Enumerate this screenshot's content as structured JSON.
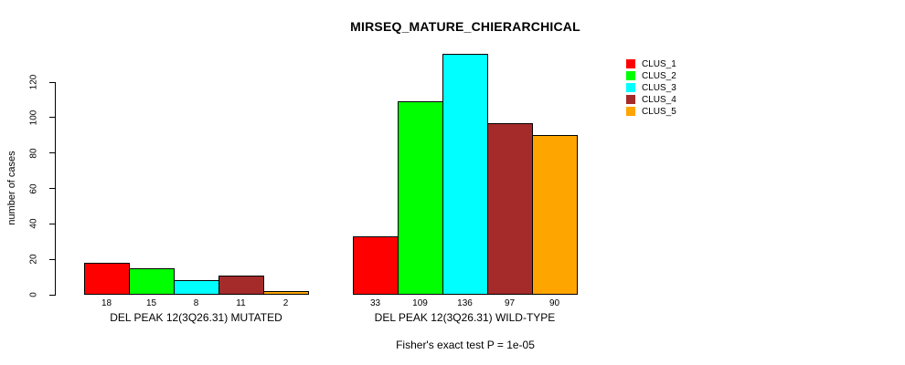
{
  "chart_data": {
    "type": "bar",
    "title": "MIRSEQ_MATURE_CHIERARCHICAL",
    "ylabel": "number of cases",
    "xlabel": "",
    "yticks": [
      0,
      20,
      40,
      60,
      80,
      100,
      120
    ],
    "ylim": [
      0,
      137
    ],
    "grid": false,
    "legend_position": "top-right",
    "categories": [
      "DEL PEAK 12(3Q26.31) MUTATED",
      "DEL PEAK 12(3Q26.31) WILD-TYPE"
    ],
    "series": [
      {
        "name": "CLUS_1",
        "color": "#FF0000",
        "values": [
          18,
          33
        ]
      },
      {
        "name": "CLUS_2",
        "color": "#00FF00",
        "values": [
          15,
          109
        ]
      },
      {
        "name": "CLUS_3",
        "color": "#00FFFF",
        "values": [
          8,
          136
        ]
      },
      {
        "name": "CLUS_4",
        "color": "#A52A2A",
        "values": [
          11,
          97
        ]
      },
      {
        "name": "CLUS_5",
        "color": "#FFA500",
        "values": [
          2,
          90
        ]
      }
    ],
    "bar_value_labels": [
      [
        "18",
        "15",
        "8",
        "11",
        "2"
      ],
      [
        "33",
        "109",
        "136",
        "97",
        "90"
      ]
    ],
    "annotation": "Fisher's exact test P = 1e-05"
  }
}
